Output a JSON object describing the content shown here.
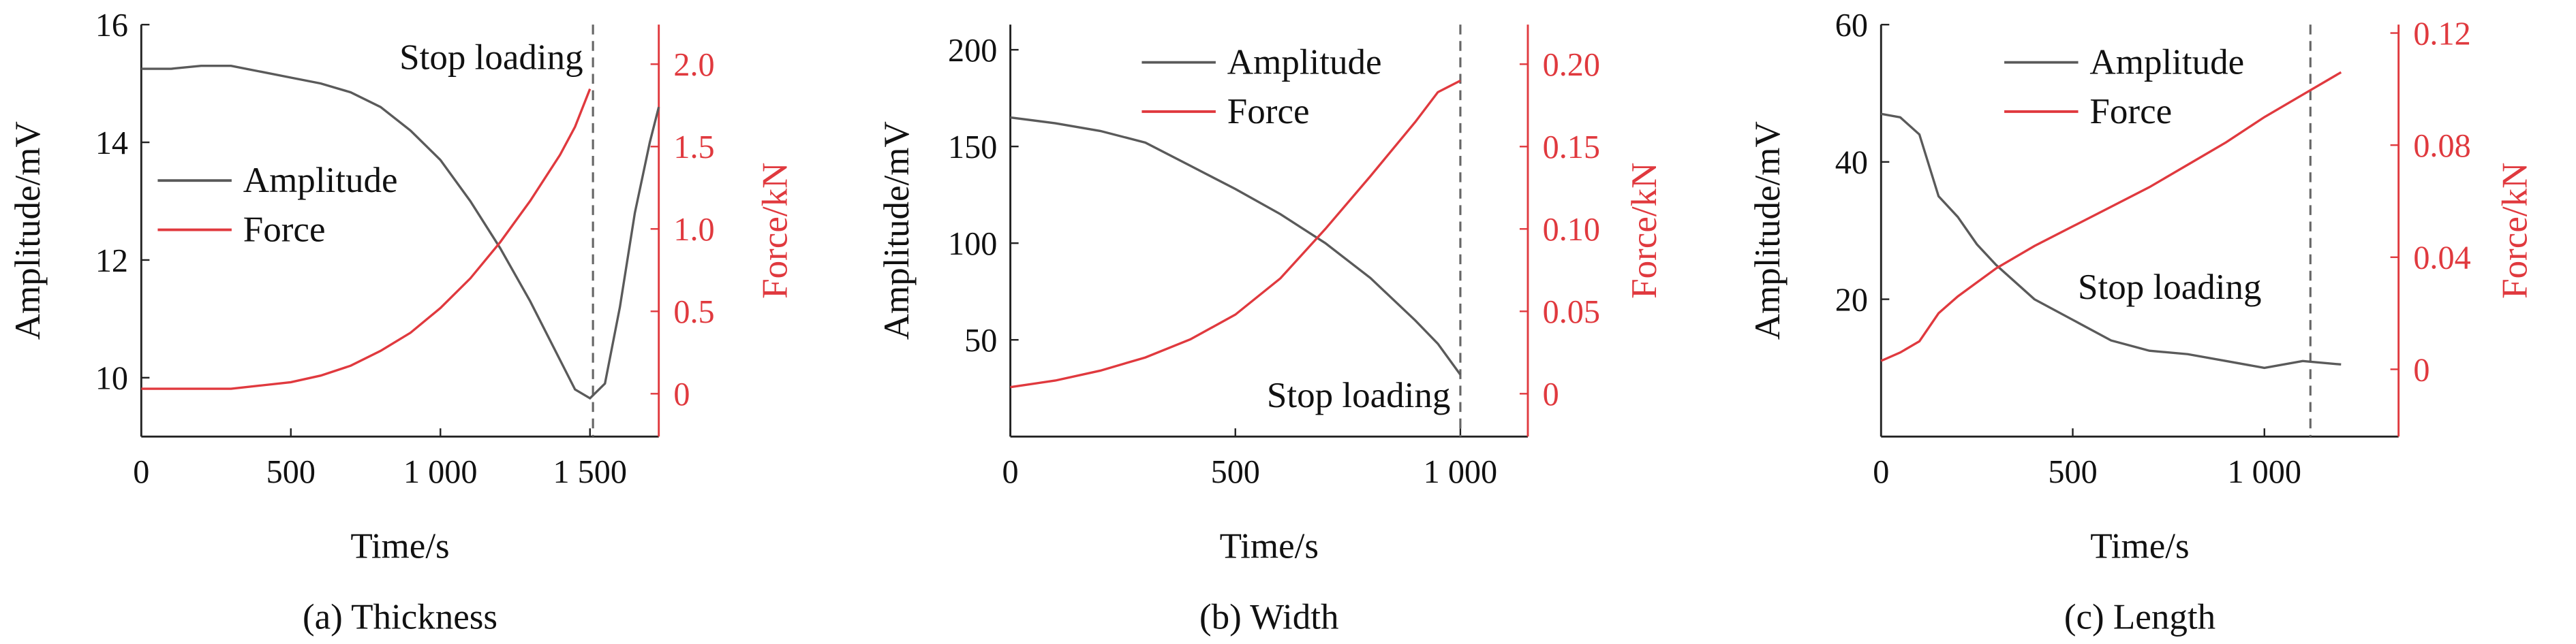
{
  "chart_data": [
    {
      "type": "line",
      "caption": "(a) Thickness",
      "x_label": "Time/s",
      "y_label": "Amplitude/mV",
      "y2_label": "Force/kN",
      "annotation": "Stop loading",
      "stop_time": 1510,
      "legend": "center left",
      "x": [
        0,
        100,
        200,
        300,
        400,
        500,
        600,
        700,
        800,
        900,
        1000,
        1100,
        1200,
        1300,
        1400,
        1450,
        1500,
        1550,
        1600,
        1650,
        1700,
        1730
      ],
      "series": [
        {
          "name": "Amplitude",
          "color": "#5a5a5a",
          "values": [
            15.25,
            15.25,
            15.3,
            15.3,
            15.2,
            15.1,
            15.0,
            14.85,
            14.6,
            14.2,
            13.7,
            13.0,
            12.2,
            11.3,
            10.3,
            9.8,
            9.65,
            9.9,
            11.2,
            12.8,
            14.0,
            14.6
          ]
        },
        {
          "name": "Force",
          "color": "#e0393e",
          "axis": "y2",
          "values": [
            0.03,
            0.03,
            0.03,
            0.03,
            0.05,
            0.07,
            0.11,
            0.17,
            0.26,
            0.37,
            0.52,
            0.7,
            0.92,
            1.17,
            1.45,
            1.62,
            1.85,
            null,
            null,
            null,
            null,
            null
          ]
        }
      ],
      "xlim": [
        0,
        1730
      ],
      "xticks": [
        0,
        500,
        {
          "value": 1000,
          "label": "1 000"
        },
        {
          "value": 1500,
          "label": "1 500"
        }
      ],
      "ylim": [
        9,
        16
      ],
      "yticks": [
        10,
        12,
        14,
        16
      ],
      "y2lim": [
        -0.26,
        2.24
      ],
      "y2ticks": [
        0,
        0.5,
        {
          "value": 1,
          "label": "1.0"
        },
        1.5,
        {
          "value": 2,
          "label": "2.0"
        }
      ]
    },
    {
      "type": "line",
      "caption": "(b) Width",
      "x_label": "Time/s",
      "y_label": "Amplitude/mV",
      "y2_label": "Force/kN",
      "annotation": "Stop loading",
      "stop_time": 1000,
      "legend": "upper right",
      "x": [
        0,
        100,
        200,
        300,
        400,
        500,
        600,
        700,
        800,
        900,
        950,
        1000
      ],
      "series": [
        {
          "name": "Amplitude",
          "color": "#5a5a5a",
          "values": [
            165,
            162,
            158,
            152,
            140,
            128,
            115,
            100,
            82,
            60,
            48,
            32
          ]
        },
        {
          "name": "Force",
          "color": "#e0393e",
          "axis": "y2",
          "values": [
            0.004,
            0.008,
            0.014,
            0.022,
            0.033,
            0.048,
            0.07,
            0.1,
            0.132,
            0.165,
            0.183,
            0.19
          ]
        }
      ],
      "xlim": [
        0,
        1150
      ],
      "xticks": [
        0,
        500,
        {
          "value": 1000,
          "label": "1 000"
        }
      ],
      "ylim": [
        0,
        213
      ],
      "yticks": [
        50,
        100,
        150,
        200
      ],
      "y2lim": [
        -0.026,
        0.224
      ],
      "y2ticks": [
        0,
        0.05,
        {
          "value": 0.1,
          "label": "0.10"
        },
        0.15,
        {
          "value": 0.2,
          "label": "0.20"
        }
      ]
    },
    {
      "type": "line",
      "caption": "(c) Length",
      "x_label": "Time/s",
      "y_label": "Amplitude/mV",
      "y2_label": "Force/kN",
      "annotation": "Stop loading",
      "stop_time": 1120,
      "legend": "upper center",
      "x": [
        0,
        50,
        100,
        150,
        200,
        250,
        300,
        400,
        500,
        600,
        700,
        800,
        900,
        1000,
        1100,
        1200
      ],
      "series": [
        {
          "name": "Amplitude",
          "color": "#5a5a5a",
          "values": [
            47,
            46.5,
            44,
            35,
            32,
            28,
            25,
            20,
            17,
            14,
            12.5,
            12,
            11,
            10,
            11,
            10.5
          ]
        },
        {
          "name": "Force",
          "color": "#e0393e",
          "axis": "y2",
          "values": [
            0.003,
            0.006,
            0.01,
            0.02,
            0.026,
            0.031,
            0.036,
            0.044,
            0.051,
            0.058,
            0.065,
            0.073,
            0.081,
            0.09,
            0.098,
            0.106
          ]
        }
      ],
      "xlim": [
        0,
        1350
      ],
      "xticks": [
        0,
        500,
        {
          "value": 1000,
          "label": "1 000"
        }
      ],
      "ylim": [
        0,
        60
      ],
      "yticks": [
        20,
        40,
        60
      ],
      "y2lim": [
        -0.024,
        0.123
      ],
      "y2ticks": [
        0,
        0.04,
        0.08,
        0.12
      ]
    }
  ]
}
